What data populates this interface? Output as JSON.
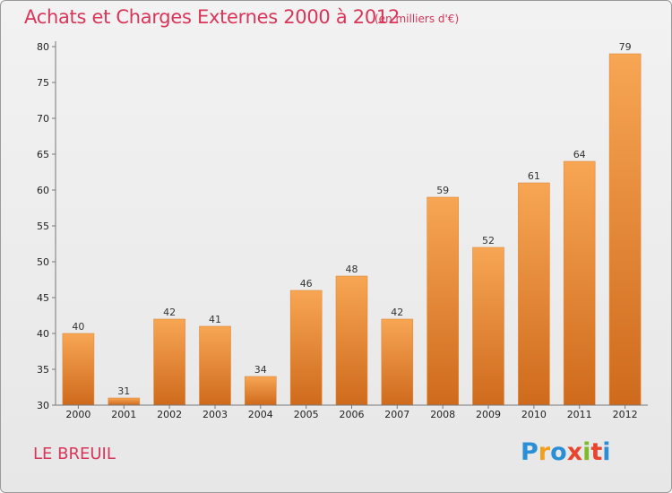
{
  "header": {
    "title": "Achats et Charges Externes 2000 à 2012",
    "unit": "(en milliers d'€)"
  },
  "footer": {
    "commune": "LE BREUIL",
    "brand_letters": [
      "P",
      "r",
      "o",
      "x",
      "i",
      "t",
      "i"
    ],
    "brand_colors": [
      "#2b8fd6",
      "#f0a01e",
      "#2b8fd6",
      "#e8452e",
      "#7dbb2a",
      "#e8452e",
      "#2b8fd6"
    ]
  },
  "colors": {
    "bar_top": "#f7a654",
    "bar_bottom": "#cf6a1c",
    "title": "#d8365a"
  },
  "chart_data": {
    "type": "bar",
    "categories": [
      "2000",
      "2001",
      "2002",
      "2003",
      "2004",
      "2005",
      "2006",
      "2007",
      "2008",
      "2009",
      "2010",
      "2011",
      "2012"
    ],
    "values": [
      40,
      31,
      42,
      41,
      34,
      46,
      48,
      42,
      59,
      52,
      61,
      64,
      79
    ],
    "ylim": [
      30,
      80
    ],
    "yticks": [
      30,
      35,
      40,
      45,
      50,
      55,
      60,
      65,
      70,
      75,
      80
    ],
    "grid": false
  }
}
